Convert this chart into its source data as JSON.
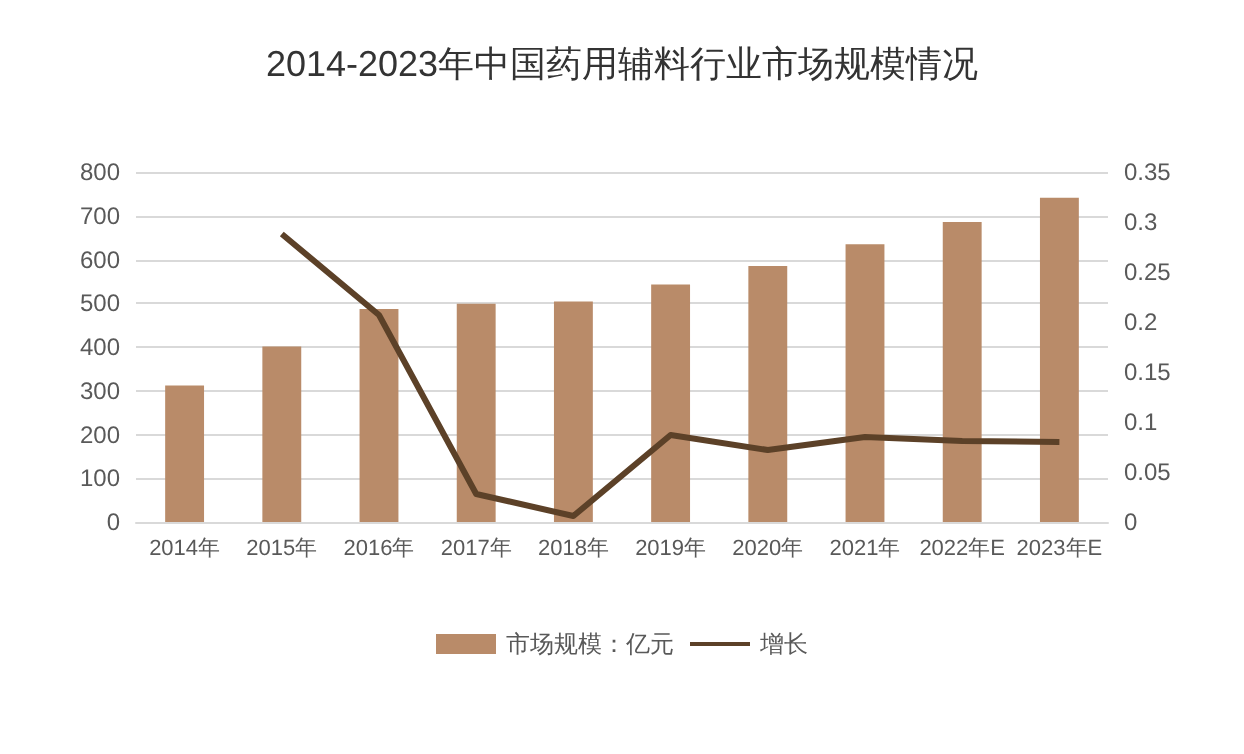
{
  "chart_data": {
    "type": "bar",
    "title": "2014-2023年中国药用辅料行业市场规模情况",
    "categories": [
      "2014年",
      "2015年",
      "2016年",
      "2017年",
      "2018年",
      "2019年",
      "2020年",
      "2021年",
      "2022年E",
      "2023年E"
    ],
    "series": [
      {
        "name": "市场规模：亿元",
        "color": "#b98b69",
        "values": [
          312,
          401,
          487,
          499,
          504,
          543,
          585,
          635,
          686,
          741
        ]
      },
      {
        "name": "增长",
        "type": "line",
        "axis": "y2",
        "color": "#5c4128",
        "values": [
          null,
          0.288,
          0.207,
          0.028,
          0.006,
          0.087,
          0.072,
          0.085,
          0.081,
          0.08
        ]
      }
    ],
    "ylim": [
      0,
      800
    ],
    "yticks": [
      0,
      100,
      200,
      300,
      400,
      500,
      600,
      700,
      800
    ],
    "y2lim": [
      0,
      0.35
    ],
    "y2ticks": [
      0,
      0.05,
      0.1,
      0.15,
      0.2,
      0.25,
      0.3,
      0.35
    ],
    "grid": "y",
    "legend": "bottom",
    "marker": "none",
    "line_style": "solid"
  }
}
